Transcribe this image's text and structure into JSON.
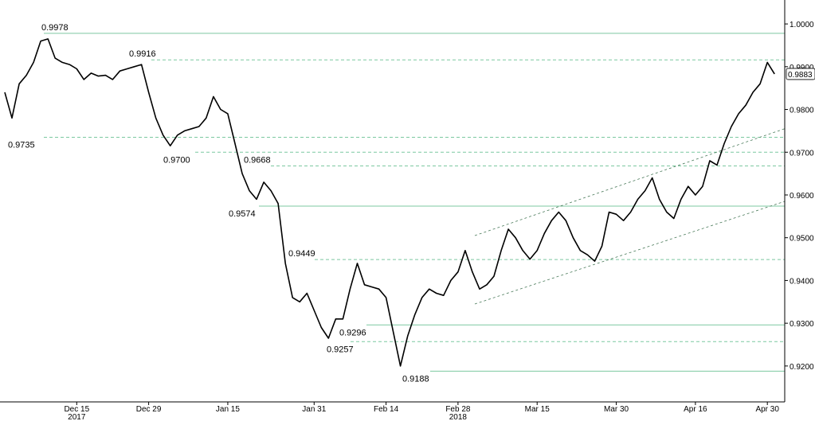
{
  "chart_data": {
    "type": "line",
    "color": "#000000",
    "level_color": "#7cc8a0",
    "channel_color": "#4a7a5a",
    "categories": [
      null,
      null,
      null,
      null,
      null,
      null,
      null,
      null,
      null,
      null,
      "Dec 15",
      null,
      null,
      null,
      null,
      null,
      null,
      null,
      null,
      null,
      "Dec 29",
      null,
      null,
      null,
      null,
      null,
      null,
      null,
      null,
      null,
      null,
      "Jan 15",
      null,
      null,
      null,
      null,
      null,
      null,
      null,
      null,
      null,
      null,
      null,
      "Jan 31",
      null,
      null,
      null,
      null,
      null,
      null,
      null,
      null,
      null,
      "Feb 14",
      null,
      null,
      null,
      null,
      null,
      null,
      null,
      null,
      null,
      "Feb 28",
      null,
      null,
      null,
      null,
      null,
      null,
      null,
      null,
      null,
      null,
      "Mar 15",
      null,
      null,
      null,
      null,
      null,
      null,
      null,
      null,
      null,
      null,
      "Mar 30",
      null,
      null,
      null,
      null,
      null,
      null,
      null,
      null,
      null,
      null,
      "Apr 16",
      null,
      null,
      null,
      null,
      null,
      null,
      null,
      null,
      null,
      "Apr 30",
      null
    ],
    "years": [
      null,
      null,
      null,
      null,
      null,
      null,
      null,
      null,
      null,
      null,
      "2017",
      null,
      null,
      null,
      null,
      null,
      null,
      null,
      null,
      null,
      null,
      null,
      null,
      null,
      null,
      null,
      null,
      null,
      null,
      null,
      null,
      null,
      null,
      null,
      null,
      null,
      null,
      null,
      null,
      null,
      null,
      null,
      null,
      null,
      null,
      null,
      null,
      null,
      null,
      null,
      null,
      null,
      null,
      null,
      null,
      null,
      null,
      null,
      null,
      null,
      null,
      null,
      null,
      "2018",
      null,
      null,
      null,
      null,
      null,
      null,
      null,
      null,
      null,
      null,
      null,
      null,
      null,
      null,
      null,
      null,
      null,
      null,
      null,
      null,
      null,
      null,
      null,
      null,
      null,
      null,
      null,
      null,
      null,
      null,
      null,
      null,
      null,
      null,
      null,
      null,
      null,
      null,
      null,
      null,
      null,
      null
    ],
    "values": [
      0.984,
      0.978,
      0.986,
      0.988,
      0.991,
      0.996,
      0.9965,
      0.992,
      0.991,
      0.9905,
      0.9895,
      0.987,
      0.9885,
      0.9878,
      0.988,
      0.987,
      0.989,
      0.9895,
      0.99,
      0.9905,
      0.984,
      0.978,
      0.974,
      0.9715,
      0.974,
      0.975,
      0.9755,
      0.976,
      0.978,
      0.983,
      0.98,
      0.979,
      0.972,
      0.965,
      0.961,
      0.959,
      0.963,
      0.961,
      0.958,
      0.944,
      0.936,
      0.935,
      0.937,
      0.933,
      0.929,
      0.9265,
      0.931,
      0.931,
      0.938,
      0.944,
      0.939,
      0.9385,
      0.938,
      0.936,
      0.928,
      0.92,
      0.927,
      0.932,
      0.936,
      0.938,
      0.937,
      0.9365,
      0.94,
      0.942,
      0.947,
      0.942,
      0.938,
      0.939,
      0.941,
      0.947,
      0.952,
      0.95,
      0.947,
      0.945,
      0.947,
      0.951,
      0.954,
      0.956,
      0.954,
      0.95,
      0.947,
      0.946,
      0.9445,
      0.948,
      0.956,
      0.9555,
      0.954,
      0.956,
      0.959,
      0.961,
      0.964,
      0.959,
      0.956,
      0.9545,
      0.959,
      0.962,
      0.96,
      0.962,
      0.968,
      0.967,
      0.972,
      0.976,
      0.979,
      0.981,
      0.984,
      0.986,
      0.991,
      0.9883
    ],
    "levels": [
      {
        "value": 0.9978,
        "style": "solid"
      },
      {
        "value": 0.9916,
        "style": "dashed"
      },
      {
        "value": 0.9735,
        "style": "dashed"
      },
      {
        "value": 0.97,
        "style": "dashed"
      },
      {
        "value": 0.9668,
        "style": "dashed"
      },
      {
        "value": 0.9574,
        "style": "solid"
      },
      {
        "value": 0.9449,
        "style": "dashed"
      },
      {
        "value": 0.9296,
        "style": "solid"
      },
      {
        "value": 0.9257,
        "style": "dashed"
      },
      {
        "value": 0.9188,
        "style": "solid"
      }
    ],
    "level_labels": [
      "0.9978",
      "0.9916",
      "0.9735",
      "0.9700",
      "0.9668",
      "0.9574",
      "0.9449",
      "0.9296",
      "0.9257",
      "0.9188"
    ],
    "channels": [
      {
        "values": [
          0.9505,
          0.9755
        ]
      },
      {
        "values": [
          0.9345,
          0.9585
        ]
      }
    ],
    "ylim": [
      0.9116,
      1.0056
    ],
    "yticks": [
      {
        "value": 0.92,
        "label": "0.9200"
      },
      {
        "value": 0.93,
        "label": "0.9300"
      },
      {
        "value": 0.94,
        "label": "0.9400"
      },
      {
        "value": 0.95,
        "label": "0.9500"
      },
      {
        "value": 0.96,
        "label": "0.9600"
      },
      {
        "value": 0.97,
        "label": "0.9700"
      },
      {
        "value": 0.98,
        "label": "0.9800"
      },
      {
        "value": 0.99,
        "label": "0.9900"
      },
      {
        "value": 1.0,
        "label": "1.0000"
      }
    ]
  }
}
